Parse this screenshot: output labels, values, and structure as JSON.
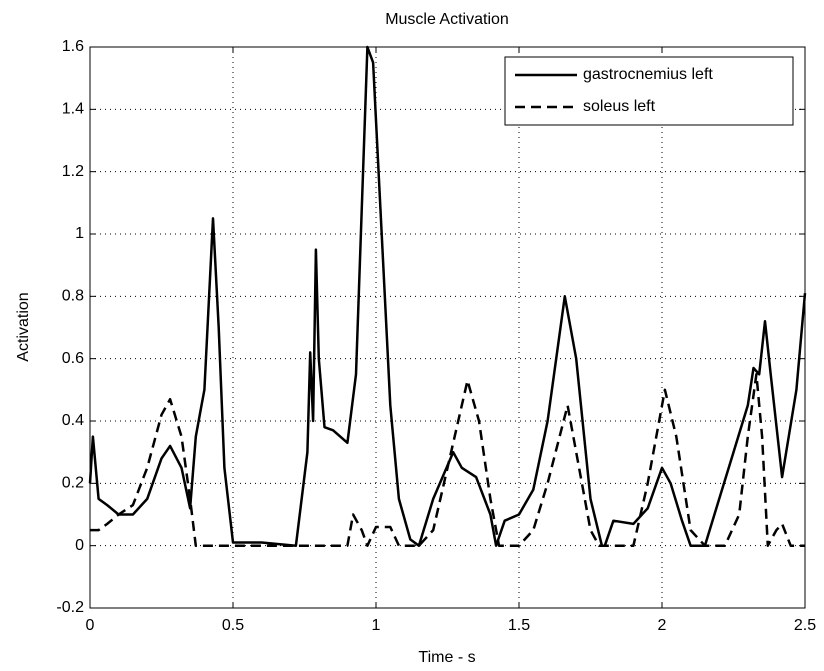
{
  "chart_data": {
    "type": "line",
    "title": "Muscle Activation",
    "xlabel": "Time - s",
    "ylabel": "Activation",
    "xlim": [
      0,
      2.5
    ],
    "xticks": [
      0,
      0.5,
      1,
      1.5,
      2,
      2.5
    ],
    "ylim": [
      -0.2,
      1.6
    ],
    "yticks": [
      -0.2,
      0,
      0.2,
      0.4,
      0.6,
      0.8,
      1,
      1.2,
      1.4,
      1.6
    ],
    "grid": true,
    "legend": "upper right",
    "series": [
      {
        "name": "gastrocnemius left",
        "color": "#000000",
        "dash": "solid",
        "x": [
          0,
          0.01,
          0.03,
          0.06,
          0.1,
          0.15,
          0.2,
          0.25,
          0.28,
          0.32,
          0.35,
          0.37,
          0.39,
          0.4,
          0.43,
          0.45,
          0.47,
          0.5,
          0.6,
          0.72,
          0.76,
          0.77,
          0.78,
          0.79,
          0.8,
          0.82,
          0.85,
          0.9,
          0.93,
          0.97,
          0.99,
          1.02,
          1.05,
          1.08,
          1.12,
          1.15,
          1.2,
          1.27,
          1.3,
          1.35,
          1.4,
          1.42,
          1.45,
          1.5,
          1.55,
          1.6,
          1.66,
          1.7,
          1.75,
          1.79,
          1.8,
          1.83,
          1.9,
          1.95,
          2.0,
          2.03,
          2.07,
          2.1,
          2.15,
          2.2,
          2.25,
          2.3,
          2.32,
          2.34,
          2.36,
          2.38,
          2.42,
          2.47,
          2.5
        ],
        "values": [
          0.2,
          0.35,
          0.15,
          0.13,
          0.1,
          0.1,
          0.15,
          0.28,
          0.32,
          0.25,
          0.12,
          0.35,
          0.45,
          0.5,
          1.05,
          0.7,
          0.25,
          0.01,
          0.01,
          0.0,
          0.3,
          0.62,
          0.4,
          0.95,
          0.6,
          0.38,
          0.37,
          0.33,
          0.55,
          1.6,
          1.55,
          1.0,
          0.45,
          0.15,
          0.02,
          0.0,
          0.15,
          0.3,
          0.25,
          0.22,
          0.1,
          0.0,
          0.08,
          0.1,
          0.18,
          0.4,
          0.8,
          0.6,
          0.15,
          0.0,
          0.0,
          0.08,
          0.07,
          0.12,
          0.25,
          0.2,
          0.08,
          0.0,
          0.0,
          0.15,
          0.3,
          0.45,
          0.57,
          0.55,
          0.72,
          0.55,
          0.22,
          0.5,
          0.81
        ]
      },
      {
        "name": "soleus left",
        "color": "#000000",
        "dash": "dashed",
        "x": [
          0,
          0.03,
          0.06,
          0.1,
          0.15,
          0.2,
          0.25,
          0.28,
          0.32,
          0.35,
          0.37,
          0.4,
          0.9,
          0.92,
          0.95,
          0.97,
          1.0,
          1.05,
          1.08,
          1.15,
          1.2,
          1.25,
          1.32,
          1.36,
          1.4,
          1.43,
          1.5,
          1.55,
          1.6,
          1.67,
          1.7,
          1.75,
          1.78,
          1.9,
          1.95,
          2.01,
          2.05,
          2.1,
          2.15,
          2.22,
          2.27,
          2.3,
          2.33,
          2.35,
          2.37,
          2.4,
          2.42,
          2.45,
          2.5
        ],
        "values": [
          0.05,
          0.05,
          0.07,
          0.1,
          0.13,
          0.25,
          0.42,
          0.47,
          0.35,
          0.15,
          0.0,
          0.0,
          0.0,
          0.1,
          0.05,
          0.0,
          0.06,
          0.06,
          0.0,
          0.0,
          0.05,
          0.25,
          0.53,
          0.4,
          0.15,
          0.0,
          0.0,
          0.05,
          0.2,
          0.45,
          0.3,
          0.05,
          0.0,
          0.0,
          0.2,
          0.5,
          0.35,
          0.05,
          0.0,
          0.0,
          0.1,
          0.35,
          0.55,
          0.35,
          0.0,
          0.05,
          0.07,
          0.0,
          0.0
        ]
      }
    ]
  }
}
